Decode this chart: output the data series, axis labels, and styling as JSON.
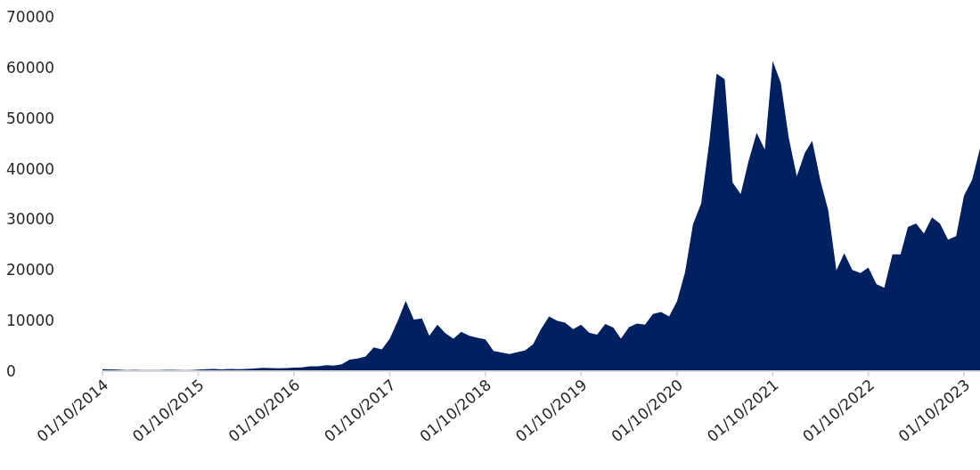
{
  "chart_data": {
    "type": "area",
    "color": "#002060",
    "x": [
      "2014-10",
      "2014-11",
      "2014-12",
      "2015-01",
      "2015-02",
      "2015-03",
      "2015-04",
      "2015-05",
      "2015-06",
      "2015-07",
      "2015-08",
      "2015-09",
      "2015-10",
      "2015-11",
      "2015-12",
      "2016-01",
      "2016-02",
      "2016-03",
      "2016-04",
      "2016-05",
      "2016-06",
      "2016-07",
      "2016-08",
      "2016-09",
      "2016-10",
      "2016-11",
      "2016-12",
      "2017-01",
      "2017-02",
      "2017-03",
      "2017-04",
      "2017-05",
      "2017-06",
      "2017-07",
      "2017-08",
      "2017-09",
      "2017-10",
      "2017-11",
      "2017-12",
      "2018-01",
      "2018-02",
      "2018-03",
      "2018-04",
      "2018-05",
      "2018-06",
      "2018-07",
      "2018-08",
      "2018-09",
      "2018-10",
      "2018-11",
      "2018-12",
      "2019-01",
      "2019-02",
      "2019-03",
      "2019-04",
      "2019-05",
      "2019-06",
      "2019-07",
      "2019-08",
      "2019-09",
      "2019-10",
      "2019-11",
      "2019-12",
      "2020-01",
      "2020-02",
      "2020-03",
      "2020-04",
      "2020-05",
      "2020-06",
      "2020-07",
      "2020-08",
      "2020-09",
      "2020-10",
      "2020-11",
      "2020-12",
      "2021-01",
      "2021-02",
      "2021-03",
      "2021-04",
      "2021-05",
      "2021-06",
      "2021-07",
      "2021-08",
      "2021-09",
      "2021-10",
      "2021-11",
      "2021-12",
      "2022-01",
      "2022-02",
      "2022-03",
      "2022-04",
      "2022-05",
      "2022-06",
      "2022-07",
      "2022-08",
      "2022-09",
      "2022-10",
      "2022-11",
      "2022-12",
      "2023-01",
      "2023-02",
      "2023-03",
      "2023-04",
      "2023-05",
      "2023-06",
      "2023-07",
      "2023-08",
      "2023-09",
      "2023-10",
      "2023-11",
      "2023-12"
    ],
    "values": [
      380,
      350,
      320,
      220,
      250,
      240,
      230,
      230,
      260,
      280,
      230,
      240,
      310,
      380,
      430,
      370,
      440,
      415,
      450,
      530,
      670,
      620,
      570,
      610,
      700,
      740,
      960,
      970,
      1190,
      1080,
      1350,
      2300,
      2500,
      2900,
      4700,
      4300,
      6400,
      10000,
      13900,
      10200,
      10400,
      7000,
      9200,
      7500,
      6400,
      7800,
      7000,
      6600,
      6300,
      4000,
      3700,
      3400,
      3800,
      4100,
      5300,
      8300,
      10800,
      10000,
      9600,
      8300,
      9200,
      7600,
      7200,
      9300,
      8600,
      6400,
      8700,
      9400,
      9200,
      11300,
      11700,
      10800,
      13800,
      19600,
      29000,
      33100,
      45200,
      58800,
      57700,
      37300,
      35000,
      41500,
      47100,
      43800,
      61300,
      57000,
      46200,
      38500,
      43200,
      45500,
      37700,
      31800,
      19900,
      23300,
      20000,
      19400,
      20500,
      17200,
      16500,
      23100,
      23100,
      28500,
      29200,
      27200,
      30400,
      29200,
      26000,
      26700,
      34700,
      37800,
      44000
    ],
    "xlim": [
      "2014-10-01",
      "2023-12-01"
    ],
    "xticks": [
      {
        "value": "2014-10-01",
        "label": "01/10/2014"
      },
      {
        "value": "2015-10-01",
        "label": "01/10/2015"
      },
      {
        "value": "2016-10-01",
        "label": "01/10/2016"
      },
      {
        "value": "2017-10-01",
        "label": "01/10/2017"
      },
      {
        "value": "2018-10-01",
        "label": "01/10/2018"
      },
      {
        "value": "2019-10-01",
        "label": "01/10/2019"
      },
      {
        "value": "2020-10-01",
        "label": "01/10/2020"
      },
      {
        "value": "2021-10-01",
        "label": "01/10/2021"
      },
      {
        "value": "2022-10-01",
        "label": "01/10/2022"
      },
      {
        "value": "2023-10-01",
        "label": "01/10/2023"
      }
    ],
    "ylim": [
      0,
      70000
    ],
    "yticks": [
      0,
      10000,
      20000,
      30000,
      40000,
      50000,
      60000,
      70000
    ]
  }
}
